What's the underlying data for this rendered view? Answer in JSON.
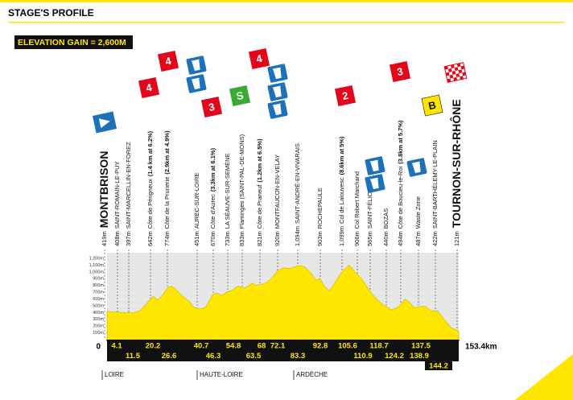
{
  "chart_data": {
    "type": "area",
    "title": "STAGE'S PROFILE",
    "subtitle": "ELEVATION GAIN = 2,600M",
    "color": "#ffe600",
    "x": [
      0,
      2,
      4.1,
      8,
      11.5,
      14,
      17,
      20.2,
      22,
      24,
      26.6,
      28,
      30,
      33,
      36,
      38,
      40.7,
      43,
      46.3,
      48,
      50,
      52,
      54.8,
      57,
      60,
      63.5,
      65,
      68,
      70,
      72.1,
      74,
      77,
      80,
      83.3,
      86,
      89,
      91,
      92.8,
      95,
      97,
      99,
      102,
      105.6,
      108,
      110.9,
      113,
      115,
      117,
      118.7,
      121,
      124.2,
      127,
      130,
      132,
      134,
      137.5,
      138.9,
      141,
      144.2,
      147,
      150,
      153.4
    ],
    "values": [
      419,
      410,
      408,
      400,
      397,
      420,
      520,
      642,
      580,
      650,
      774,
      790,
      740,
      640,
      560,
      470,
      451,
      480,
      670,
      690,
      650,
      700,
      733,
      790,
      760,
      833,
      800,
      821,
      850,
      920,
      1000,
      1060,
      1050,
      1094,
      1080,
      980,
      880,
      903,
      780,
      720,
      820,
      980,
      1099,
      1000,
      906,
      800,
      700,
      620,
      565,
      500,
      440,
      480,
      600,
      550,
      470,
      494,
      487,
      430,
      422,
      300,
      180,
      121
    ],
    "xlim": [
      0,
      153.4
    ],
    "xticks": [
      0,
      {
        "value": 153.4,
        "label": "153.4km"
      }
    ],
    "ylim": [
      0,
      1200
    ],
    "yticks": [
      {
        "value": 100,
        "label": "100m"
      },
      {
        "value": 200,
        "label": "200m"
      },
      {
        "value": 300,
        "label": "300m"
      },
      {
        "value": 400,
        "label": "400m"
      },
      {
        "value": 500,
        "label": "500m"
      },
      {
        "value": 600,
        "label": "600m"
      },
      {
        "value": 700,
        "label": "700m"
      },
      {
        "value": 800,
        "label": "800m"
      },
      {
        "value": 900,
        "label": "900m"
      },
      {
        "value": 1000,
        "label": "1,000m"
      },
      {
        "value": 1100,
        "label": "1,100m"
      },
      {
        "value": 1200,
        "label": "1,200m"
      }
    ],
    "start": {
      "altitude": "419m",
      "name": "MONTBRISON"
    },
    "finish": {
      "altitude": "121m",
      "name": "TOURNON-SUR-RHÔNE"
    },
    "waypoints": [
      {
        "km": 4.1,
        "altitude": "408m",
        "name": "SAINT-ROMAIN-LE-PUY"
      },
      {
        "km": 11.5,
        "altitude": "397m",
        "name": "SAINT-MARCELLIN-EN-FOREZ"
      },
      {
        "km": 20.2,
        "altitude": "642m",
        "name": "Côte de Périgneux",
        "detail": "(1.4 km at 6.2%)",
        "category": "4"
      },
      {
        "km": 26.6,
        "altitude": "774m",
        "name": "Côte de la Prunerie",
        "detail": "(2.9km at 4.9%)",
        "category": "4"
      },
      {
        "km": 40.7,
        "altitude": "451m",
        "name": "AUREC-SUR-LOIRE"
      },
      {
        "km": 46.3,
        "altitude": "670m",
        "name": "Côte d'Aurec",
        "detail": "(3.3km at 6.1%)",
        "category": "3"
      },
      {
        "km": 54.8,
        "altitude": "733m",
        "name": "LA SÉAUVE-SUR-SEMÈNE"
      },
      {
        "km": 63.5,
        "altitude": "833m",
        "name": "Flaminges (SAINT-PAL-DE-MONS)",
        "category": "S"
      },
      {
        "km": 68,
        "altitude": "821m",
        "name": "Côte de Praneuf",
        "detail": "(1.2km at 6.5%)",
        "category": "4"
      },
      {
        "km": 72.1,
        "altitude": "920m",
        "name": "MONTFAUCON-EN-VELAY"
      },
      {
        "km": 83.3,
        "altitude": "1,094m",
        "name": "SAINT-ANDRÉ-EN-VIVARAIS"
      },
      {
        "km": 92.8,
        "altitude": "903m",
        "name": "ROCHEPAULE"
      },
      {
        "km": 105.6,
        "altitude": "1,099m",
        "name": "Col de Lalouvesc",
        "detail": "(8.6km at 5%)",
        "category": "2"
      },
      {
        "km": 110.9,
        "altitude": "906m",
        "name": "Col Robert Marchand"
      },
      {
        "km": 118.7,
        "altitude": "565m",
        "name": "SAINT-FÉLICIEN"
      },
      {
        "km": 124.2,
        "altitude": "440m",
        "name": "BOZAS"
      },
      {
        "km": 137.5,
        "altitude": "494m",
        "name": "Côte de Boucieu-le-Roi",
        "detail": "(3.8km at 5.7%)",
        "category": "3"
      },
      {
        "km": 138.9,
        "altitude": "487m",
        "name": "Waste Zone"
      },
      {
        "km": 144.2,
        "altitude": "422m",
        "name": "SAINT-BARTHÉLEMY-LE-PLAIN",
        "category": "B"
      }
    ],
    "regions": [
      "LOIRE",
      "HAUTE-LOIRE",
      "ARDÈCHE"
    ]
  }
}
